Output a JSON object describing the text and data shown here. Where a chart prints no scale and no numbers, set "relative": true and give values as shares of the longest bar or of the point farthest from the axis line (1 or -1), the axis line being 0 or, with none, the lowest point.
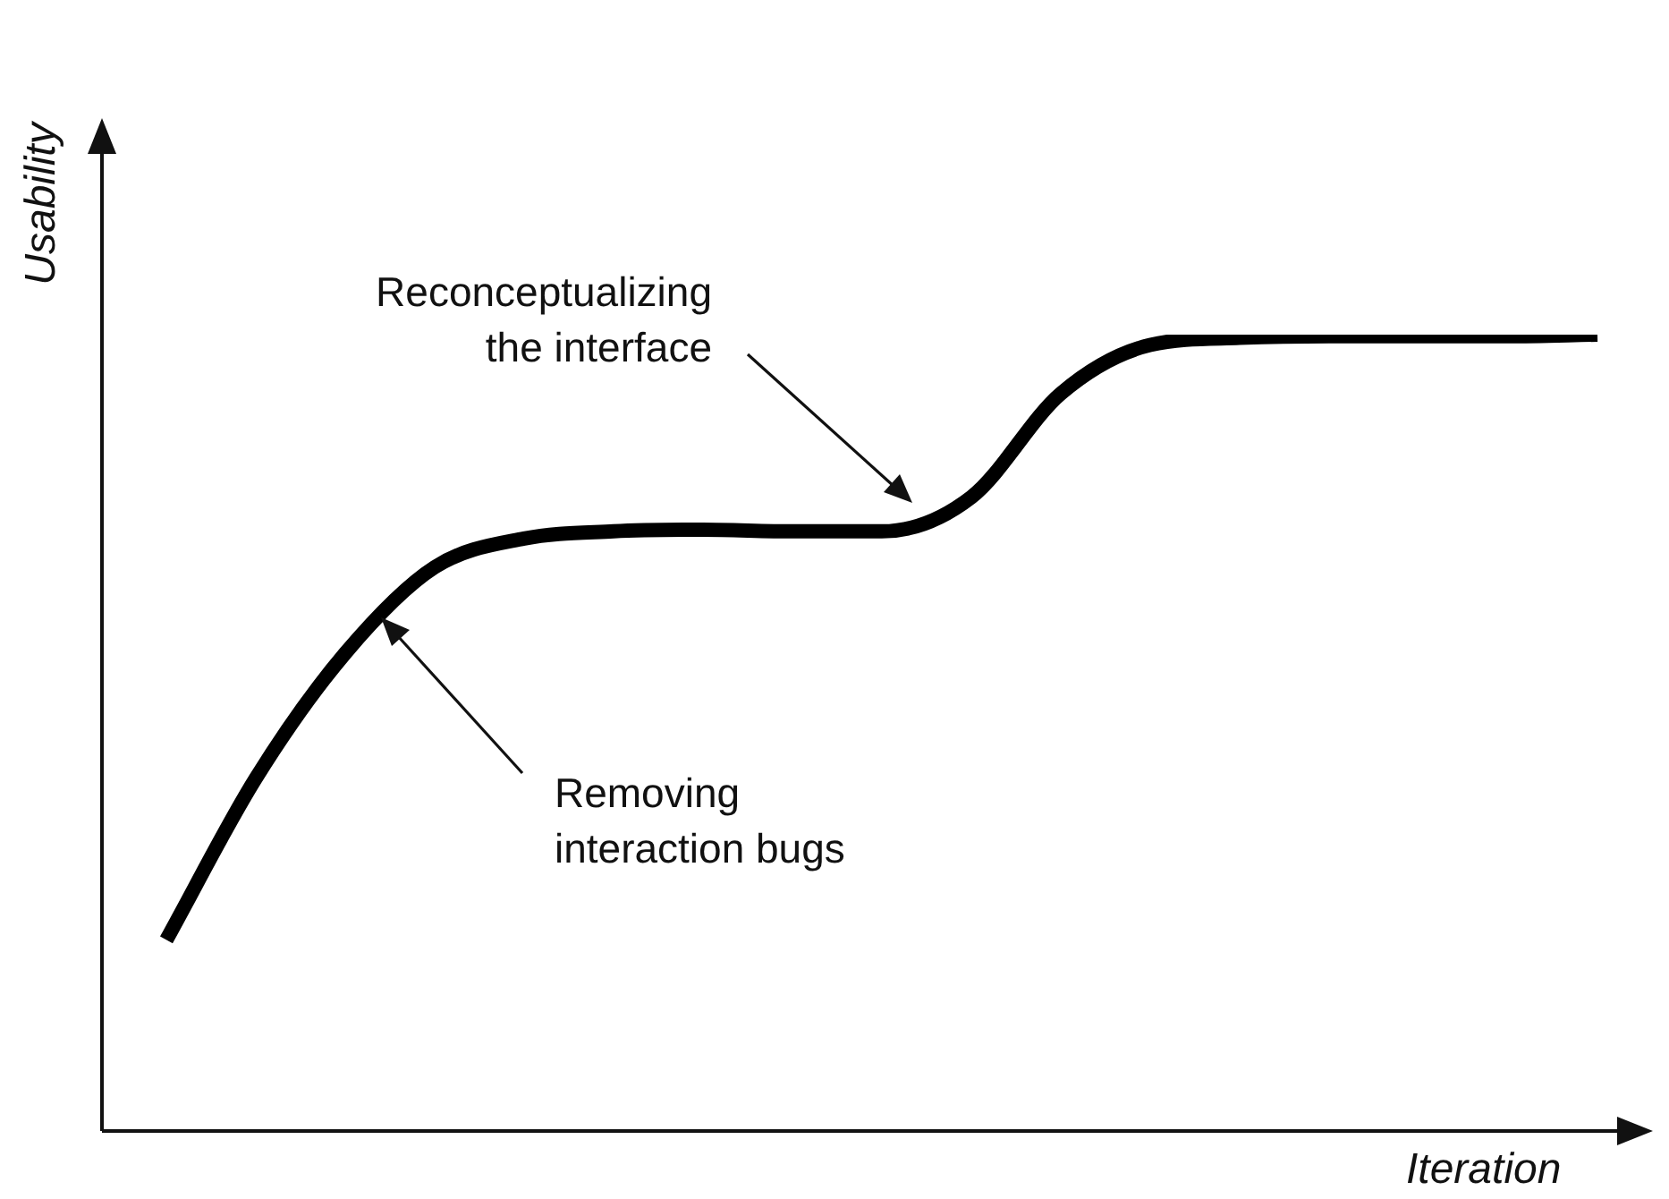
{
  "chart_data": {
    "type": "line",
    "relative": true,
    "xlabel": "Iteration",
    "ylabel": "Usability",
    "categories": [
      null,
      null,
      null,
      null,
      null,
      null,
      null,
      null,
      null,
      null,
      null,
      null,
      null,
      null,
      null,
      null,
      null
    ],
    "series": [
      {
        "color": "#000000",
        "values": [
          0.24,
          0.443,
          0.6,
          0.708,
          0.744,
          0.753,
          0.755,
          0.753,
          0.753,
          0.796,
          0.926,
          0.987,
          0.996,
          0.998,
          0.998,
          0.998,
          1
        ]
      }
    ],
    "annotations": [
      "Reconceptualizing the interface",
      "Removing interaction bugs"
    ]
  }
}
